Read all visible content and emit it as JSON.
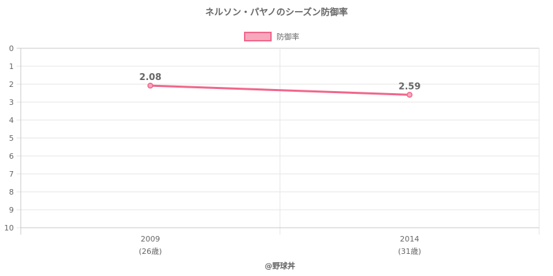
{
  "chart_data": {
    "type": "line",
    "title": "ネルソン・パヤノのシーズン防御率",
    "categories": [
      "2009",
      "2014"
    ],
    "category_sublabels": [
      "(26歳)",
      "(31歳)"
    ],
    "series": [
      {
        "name": "防御率",
        "values": [
          2.08,
          2.59
        ],
        "data_labels": [
          "2.08",
          "2.59"
        ],
        "color": "#f0668b"
      }
    ],
    "ylim": [
      0,
      10
    ],
    "y_reversed": true,
    "yticks": [
      "0",
      "1",
      "2",
      "3",
      "4",
      "5",
      "6",
      "7",
      "8",
      "9",
      "10"
    ],
    "grid": true,
    "legend_position": "top"
  },
  "credit": "@野球丼",
  "colors": {
    "grid": "#e6e6e6",
    "axis": "#c8c8c8",
    "text": "#666666",
    "legend_fill": "#f7a8bd"
  }
}
